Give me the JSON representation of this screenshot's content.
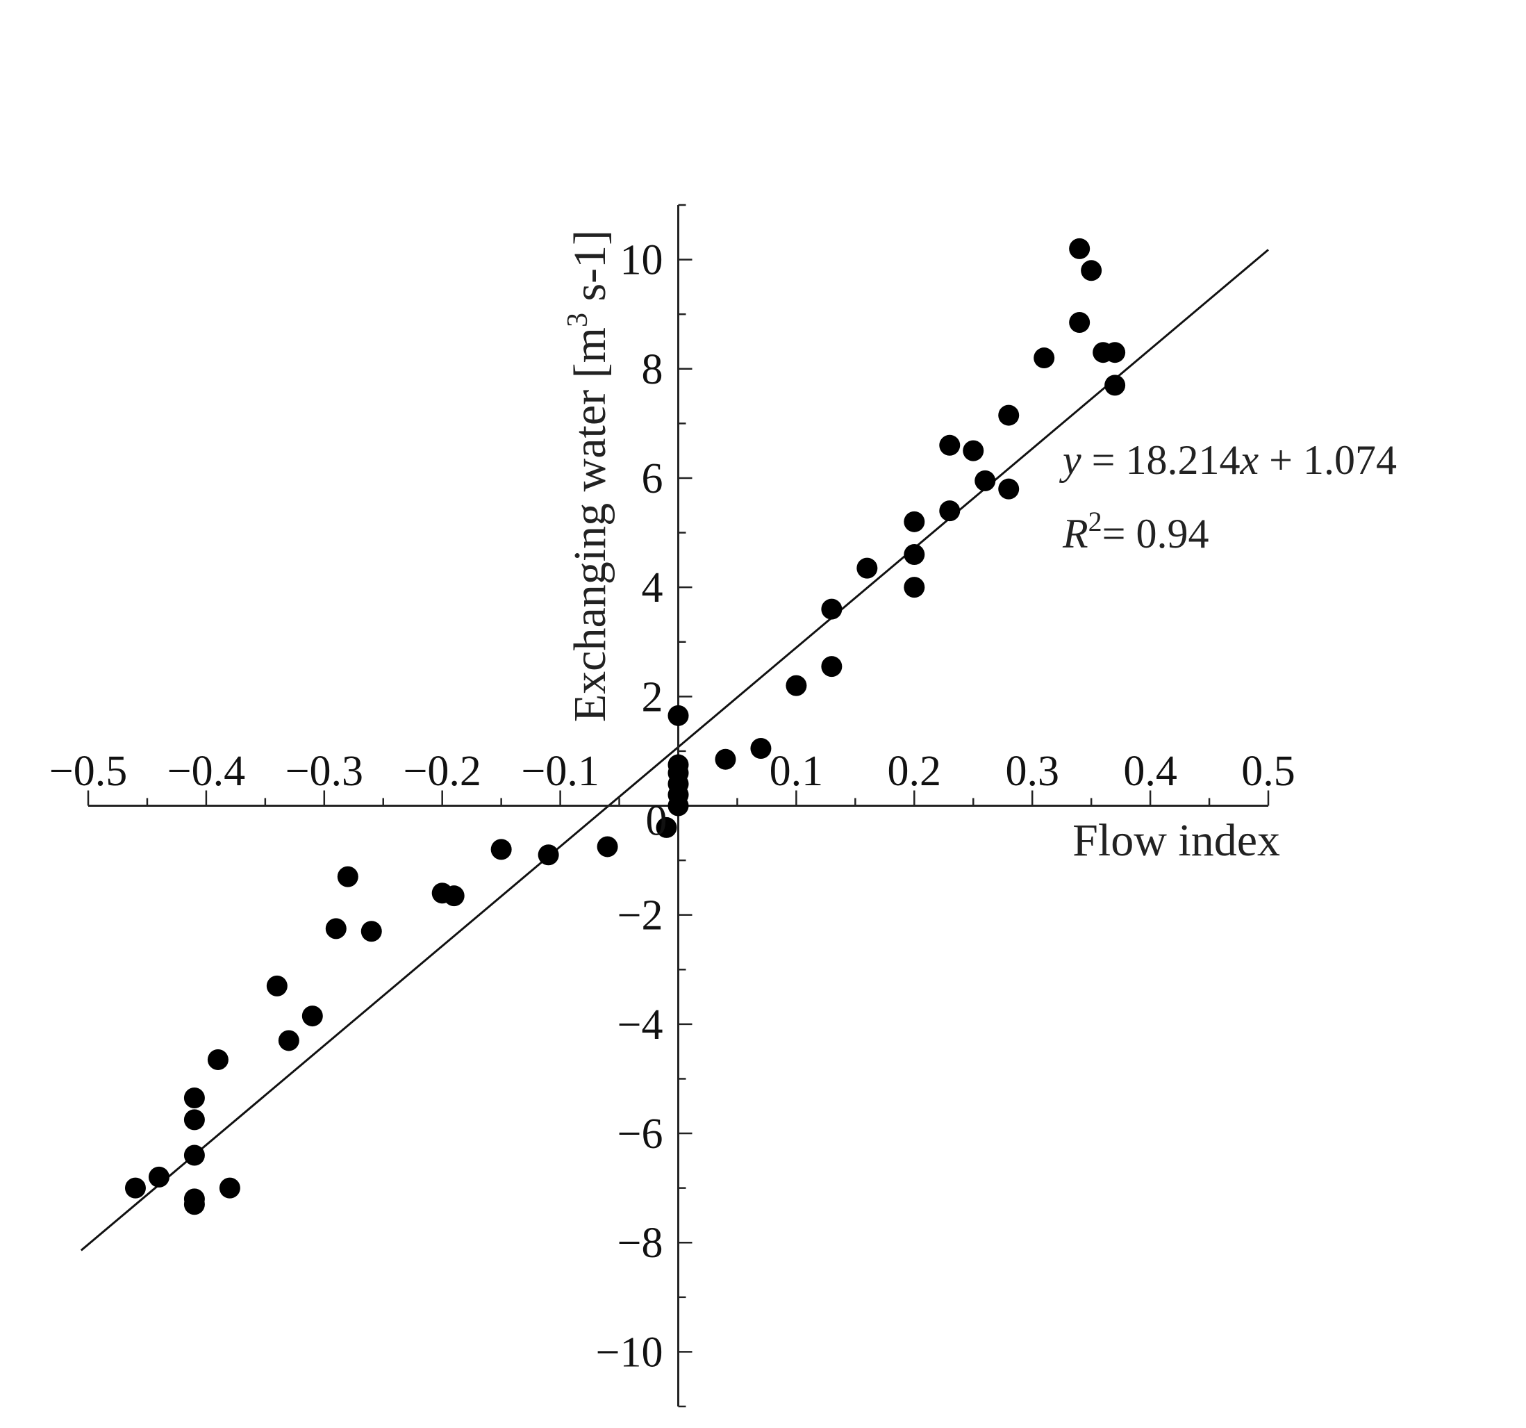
{
  "chart_data": {
    "type": "scatter",
    "xlabel": "Flow index",
    "ylabel": {
      "prefix": "Exchanging water [m",
      "sup": "3",
      "suffix": " s-1]"
    },
    "xlim": [
      -0.5,
      0.5
    ],
    "ylim": [
      -11,
      11
    ],
    "x_ticks": [
      -0.5,
      -0.4,
      -0.3,
      -0.2,
      -0.1,
      0.1,
      0.2,
      0.3,
      0.4,
      0.5
    ],
    "x_tick_labels": [
      "−0.5",
      "−0.4",
      "−0.3",
      "−0.2",
      "−0.1",
      "0.1",
      "0.2",
      "0.3",
      "0.4",
      "0.5"
    ],
    "y_ticks": [
      10,
      8,
      6,
      4,
      2,
      0,
      -2,
      -4,
      -6,
      -8,
      -10
    ],
    "y_tick_labels": [
      "10",
      "8",
      "6",
      "4",
      "2",
      "0",
      "−2",
      "−4",
      "−6",
      "−8",
      "−10"
    ],
    "grid": false,
    "trendline": {
      "slope": 18.214,
      "intercept": 1.074,
      "x_range": [
        -0.506,
        0.5
      ],
      "label": {
        "y_var": "y",
        "eq_middle": " = 18.214",
        "x_var": "x",
        "eq_tail": " + 1.074",
        "r_var": "R",
        "r_sup": "2",
        "r_tail": "= 0.94"
      }
    },
    "points": [
      {
        "x": -0.46,
        "y": -7.0
      },
      {
        "x": -0.44,
        "y": -6.8
      },
      {
        "x": -0.41,
        "y": -7.2
      },
      {
        "x": -0.41,
        "y": -7.3
      },
      {
        "x": -0.41,
        "y": -6.4
      },
      {
        "x": -0.41,
        "y": -5.75
      },
      {
        "x": -0.41,
        "y": -5.35
      },
      {
        "x": -0.39,
        "y": -4.65
      },
      {
        "x": -0.38,
        "y": -7.0
      },
      {
        "x": -0.34,
        "y": -3.3
      },
      {
        "x": -0.33,
        "y": -4.3
      },
      {
        "x": -0.31,
        "y": -3.85
      },
      {
        "x": -0.29,
        "y": -2.25
      },
      {
        "x": -0.28,
        "y": -1.3
      },
      {
        "x": -0.26,
        "y": -2.3
      },
      {
        "x": -0.2,
        "y": -1.6
      },
      {
        "x": -0.19,
        "y": -1.65
      },
      {
        "x": -0.15,
        "y": -0.8
      },
      {
        "x": -0.11,
        "y": -0.9
      },
      {
        "x": -0.06,
        "y": -0.75
      },
      {
        "x": -0.01,
        "y": -0.4
      },
      {
        "x": 0.0,
        "y": 0.0
      },
      {
        "x": 0.0,
        "y": 0.2
      },
      {
        "x": 0.0,
        "y": 0.4
      },
      {
        "x": 0.0,
        "y": 0.6
      },
      {
        "x": 0.0,
        "y": 0.75
      },
      {
        "x": 0.0,
        "y": 1.65
      },
      {
        "x": 0.04,
        "y": 0.85
      },
      {
        "x": 0.07,
        "y": 1.05
      },
      {
        "x": 0.1,
        "y": 2.2
      },
      {
        "x": 0.13,
        "y": 2.55
      },
      {
        "x": 0.13,
        "y": 3.6
      },
      {
        "x": 0.16,
        "y": 4.35
      },
      {
        "x": 0.2,
        "y": 4.0
      },
      {
        "x": 0.2,
        "y": 4.6
      },
      {
        "x": 0.2,
        "y": 5.2
      },
      {
        "x": 0.23,
        "y": 5.4
      },
      {
        "x": 0.23,
        "y": 6.6
      },
      {
        "x": 0.25,
        "y": 6.5
      },
      {
        "x": 0.26,
        "y": 5.95
      },
      {
        "x": 0.28,
        "y": 5.8
      },
      {
        "x": 0.28,
        "y": 7.15
      },
      {
        "x": 0.31,
        "y": 8.2
      },
      {
        "x": 0.34,
        "y": 8.85
      },
      {
        "x": 0.34,
        "y": 10.2
      },
      {
        "x": 0.35,
        "y": 9.8
      },
      {
        "x": 0.36,
        "y": 8.3
      },
      {
        "x": 0.37,
        "y": 8.3
      },
      {
        "x": 0.37,
        "y": 7.7
      }
    ]
  }
}
